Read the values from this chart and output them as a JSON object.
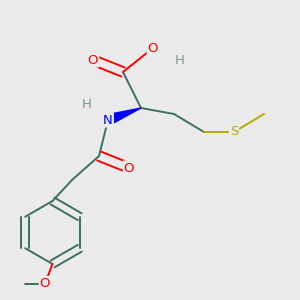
{
  "background_color": "#ebebeb",
  "atom_colors": {
    "C": "#3d7060",
    "H": "#7a9990",
    "N": "#0000ff",
    "O": "#ff0000",
    "S": "#b8a800"
  },
  "figsize": [
    3.0,
    3.0
  ],
  "dpi": 100,
  "bond_lw": 1.4,
  "font_size": 9.5
}
